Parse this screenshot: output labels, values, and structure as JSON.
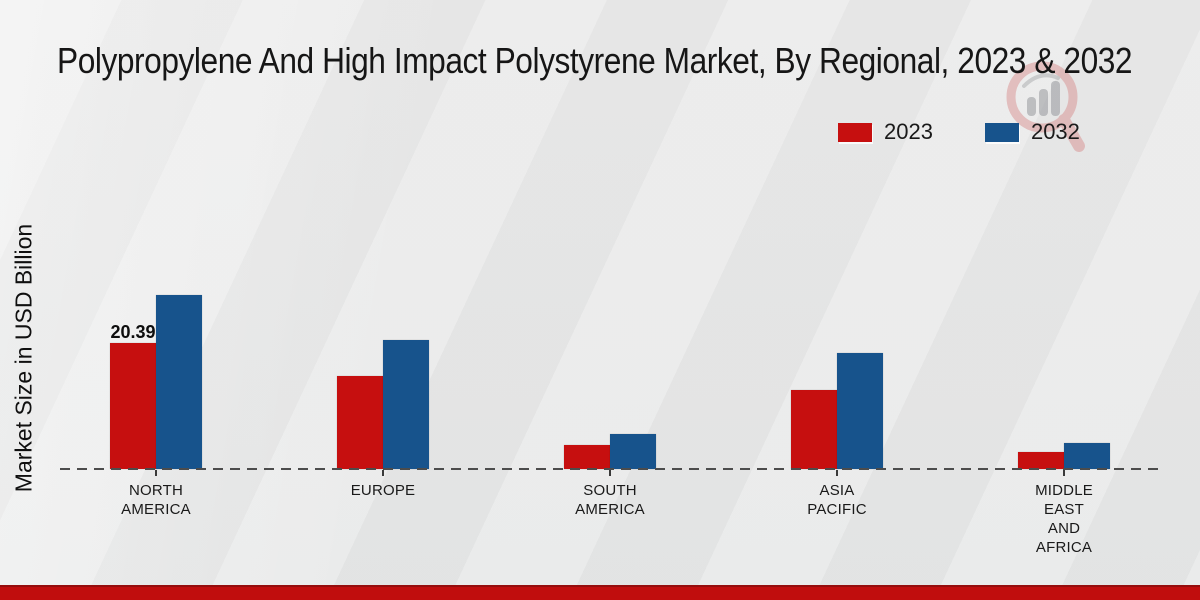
{
  "header": {
    "title": "Polypropylene And High Impact Polystyrene Market, By Regional, 2023 & 2032"
  },
  "axes": {
    "ylabel": "Market Size in USD Billion"
  },
  "legend": {
    "items": [
      {
        "label": "2023",
        "color": "#c60f0f"
      },
      {
        "label": "2032",
        "color": "#17538c"
      }
    ]
  },
  "chart_data": {
    "type": "bar",
    "title": "Polypropylene And High Impact Polystyrene Market, By Regional, 2023 & 2032",
    "categories": [
      "NORTH AMERICA",
      "EUROPE",
      "SOUTH AMERICA",
      "ASIA PACIFIC",
      "MIDDLE EAST AND AFRICA"
    ],
    "series": [
      {
        "name": "2023",
        "color": "#c60f0f",
        "values": [
          20.39,
          15.1,
          3.9,
          12.8,
          2.8
        ]
      },
      {
        "name": "2032",
        "color": "#17538c",
        "values": [
          28.1,
          20.8,
          5.7,
          18.8,
          4.2
        ]
      }
    ],
    "xlabel": "",
    "ylabel": "Market Size in USD Billion",
    "ylim": [
      0,
      30
    ],
    "grid": false,
    "legend_position": "top-right",
    "data_labels": [
      {
        "series_index": 0,
        "category_index": 0,
        "text": "20.39"
      }
    ]
  },
  "branding": {
    "watermark_icon": "magnifier-bar-chart-logo",
    "footer_color": "#c00d0d"
  }
}
